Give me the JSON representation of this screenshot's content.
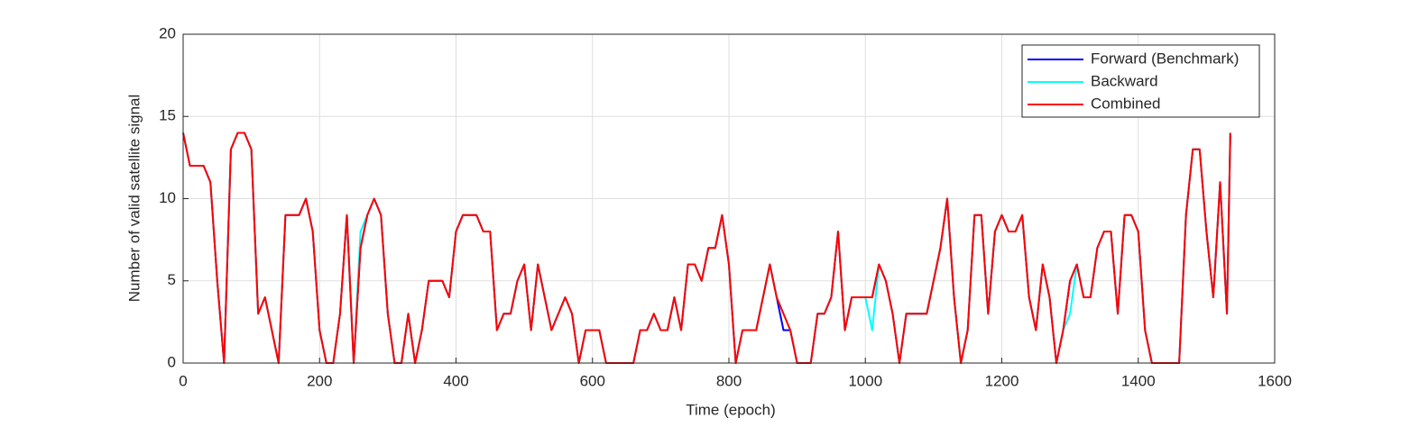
{
  "chart_data": {
    "type": "line",
    "xlabel": "Time (epoch)",
    "ylabel": "Number of valid satellite signal",
    "xlim": [
      0,
      1600
    ],
    "xticks": [
      0,
      200,
      400,
      600,
      800,
      1000,
      1200,
      1400,
      1600
    ],
    "ylim": [
      0,
      20
    ],
    "yticks": [
      0,
      5,
      10,
      15,
      20
    ],
    "grid": true,
    "legend": "northeast",
    "x": [
      0,
      10,
      20,
      30,
      40,
      50,
      60,
      70,
      80,
      90,
      100,
      110,
      120,
      130,
      140,
      150,
      160,
      170,
      180,
      190,
      200,
      210,
      220,
      230,
      240,
      250,
      260,
      270,
      280,
      290,
      300,
      310,
      320,
      330,
      340,
      350,
      360,
      370,
      380,
      390,
      400,
      410,
      420,
      430,
      440,
      450,
      460,
      470,
      480,
      490,
      500,
      510,
      520,
      530,
      540,
      550,
      560,
      570,
      580,
      590,
      600,
      610,
      620,
      630,
      640,
      650,
      660,
      670,
      680,
      690,
      700,
      710,
      720,
      730,
      740,
      750,
      760,
      770,
      780,
      790,
      800,
      810,
      820,
      830,
      840,
      850,
      860,
      870,
      880,
      890,
      900,
      910,
      920,
      930,
      940,
      950,
      960,
      970,
      980,
      990,
      1000,
      1010,
      1020,
      1030,
      1040,
      1050,
      1060,
      1070,
      1080,
      1090,
      1100,
      1110,
      1120,
      1130,
      1140,
      1150,
      1160,
      1170,
      1180,
      1190,
      1200,
      1210,
      1220,
      1230,
      1240,
      1250,
      1260,
      1270,
      1280,
      1290,
      1300,
      1310,
      1320,
      1330,
      1340,
      1350,
      1360,
      1370,
      1380,
      1390,
      1400,
      1410,
      1420,
      1430,
      1440,
      1450,
      1460,
      1470,
      1480,
      1490,
      1500,
      1510,
      1520,
      1530,
      1535
    ],
    "series": [
      {
        "name": "Forward (Benchmark)",
        "color": "#0000ff",
        "values": [
          14,
          12,
          12,
          12,
          11,
          5,
          0,
          13,
          14,
          14,
          13,
          3,
          4,
          2,
          0,
          9,
          9,
          9,
          10,
          8,
          2,
          0,
          0,
          3,
          9,
          0,
          7,
          9,
          10,
          9,
          3,
          0,
          0,
          3,
          0,
          2,
          5,
          5,
          5,
          4,
          8,
          9,
          9,
          9,
          8,
          8,
          2,
          3,
          3,
          5,
          6,
          2,
          6,
          4,
          2,
          3,
          4,
          3,
          0,
          2,
          2,
          2,
          0,
          0,
          0,
          0,
          0,
          2,
          2,
          3,
          2,
          2,
          4,
          2,
          6,
          6,
          5,
          7,
          7,
          9,
          6,
          0,
          2,
          2,
          2,
          4,
          6,
          4,
          2,
          2,
          0,
          0,
          0,
          3,
          3,
          4,
          8,
          2,
          4,
          4,
          4,
          4,
          6,
          5,
          3,
          0,
          3,
          3,
          3,
          3,
          5,
          7,
          10,
          4,
          0,
          2,
          9,
          9,
          3,
          8,
          9,
          8,
          8,
          9,
          4,
          2,
          6,
          4,
          0,
          2,
          5,
          6,
          4,
          4,
          7,
          8,
          8,
          3,
          9,
          9,
          8,
          2,
          0,
          0,
          0,
          0,
          0,
          9,
          13,
          13,
          8,
          4,
          11,
          3,
          14
        ]
      },
      {
        "name": "Backward",
        "color": "#00ffff",
        "values": [
          14,
          12,
          12,
          12,
          11,
          5,
          0,
          13,
          14,
          14,
          13,
          3,
          4,
          2,
          0,
          9,
          9,
          9,
          10,
          8,
          2,
          0,
          0,
          3,
          9,
          0,
          8,
          9,
          10,
          9,
          3,
          0,
          0,
          3,
          0,
          2,
          5,
          5,
          5,
          4,
          8,
          9,
          9,
          9,
          8,
          8,
          2,
          3,
          3,
          5,
          6,
          2,
          6,
          4,
          2,
          3,
          4,
          3,
          0,
          2,
          2,
          2,
          0,
          0,
          0,
          0,
          0,
          2,
          2,
          3,
          2,
          2,
          4,
          2,
          6,
          6,
          5,
          7,
          7,
          9,
          6,
          0,
          2,
          2,
          2,
          4,
          6,
          4,
          3,
          2,
          0,
          0,
          0,
          3,
          3,
          4,
          8,
          2,
          4,
          4,
          4,
          2,
          6,
          5,
          3,
          0,
          3,
          3,
          3,
          3,
          5,
          7,
          10,
          4,
          0,
          2,
          9,
          9,
          3,
          8,
          9,
          8,
          8,
          9,
          4,
          2,
          6,
          4,
          0,
          2,
          3,
          6,
          4,
          4,
          7,
          8,
          8,
          3,
          9,
          9,
          8,
          2,
          0,
          0,
          0,
          0,
          0,
          9,
          13,
          13,
          8,
          4,
          11,
          3,
          14
        ]
      },
      {
        "name": "Combined",
        "color": "#ff0000",
        "values": [
          14,
          12,
          12,
          12,
          11,
          5,
          0,
          13,
          14,
          14,
          13,
          3,
          4,
          2,
          0,
          9,
          9,
          9,
          10,
          8,
          2,
          0,
          0,
          3,
          9,
          0,
          7,
          9,
          10,
          9,
          3,
          0,
          0,
          3,
          0,
          2,
          5,
          5,
          5,
          4,
          8,
          9,
          9,
          9,
          8,
          8,
          2,
          3,
          3,
          5,
          6,
          2,
          6,
          4,
          2,
          3,
          4,
          3,
          0,
          2,
          2,
          2,
          0,
          0,
          0,
          0,
          0,
          2,
          2,
          3,
          2,
          2,
          4,
          2,
          6,
          6,
          5,
          7,
          7,
          9,
          6,
          0,
          2,
          2,
          2,
          4,
          6,
          4,
          3,
          2,
          0,
          0,
          0,
          3,
          3,
          4,
          8,
          2,
          4,
          4,
          4,
          4,
          6,
          5,
          3,
          0,
          3,
          3,
          3,
          3,
          5,
          7,
          10,
          4,
          0,
          2,
          9,
          9,
          3,
          8,
          9,
          8,
          8,
          9,
          4,
          2,
          6,
          4,
          0,
          2,
          5,
          6,
          4,
          4,
          7,
          8,
          8,
          3,
          9,
          9,
          8,
          2,
          0,
          0,
          0,
          0,
          0,
          9,
          13,
          13,
          8,
          4,
          11,
          3,
          14
        ]
      }
    ]
  }
}
